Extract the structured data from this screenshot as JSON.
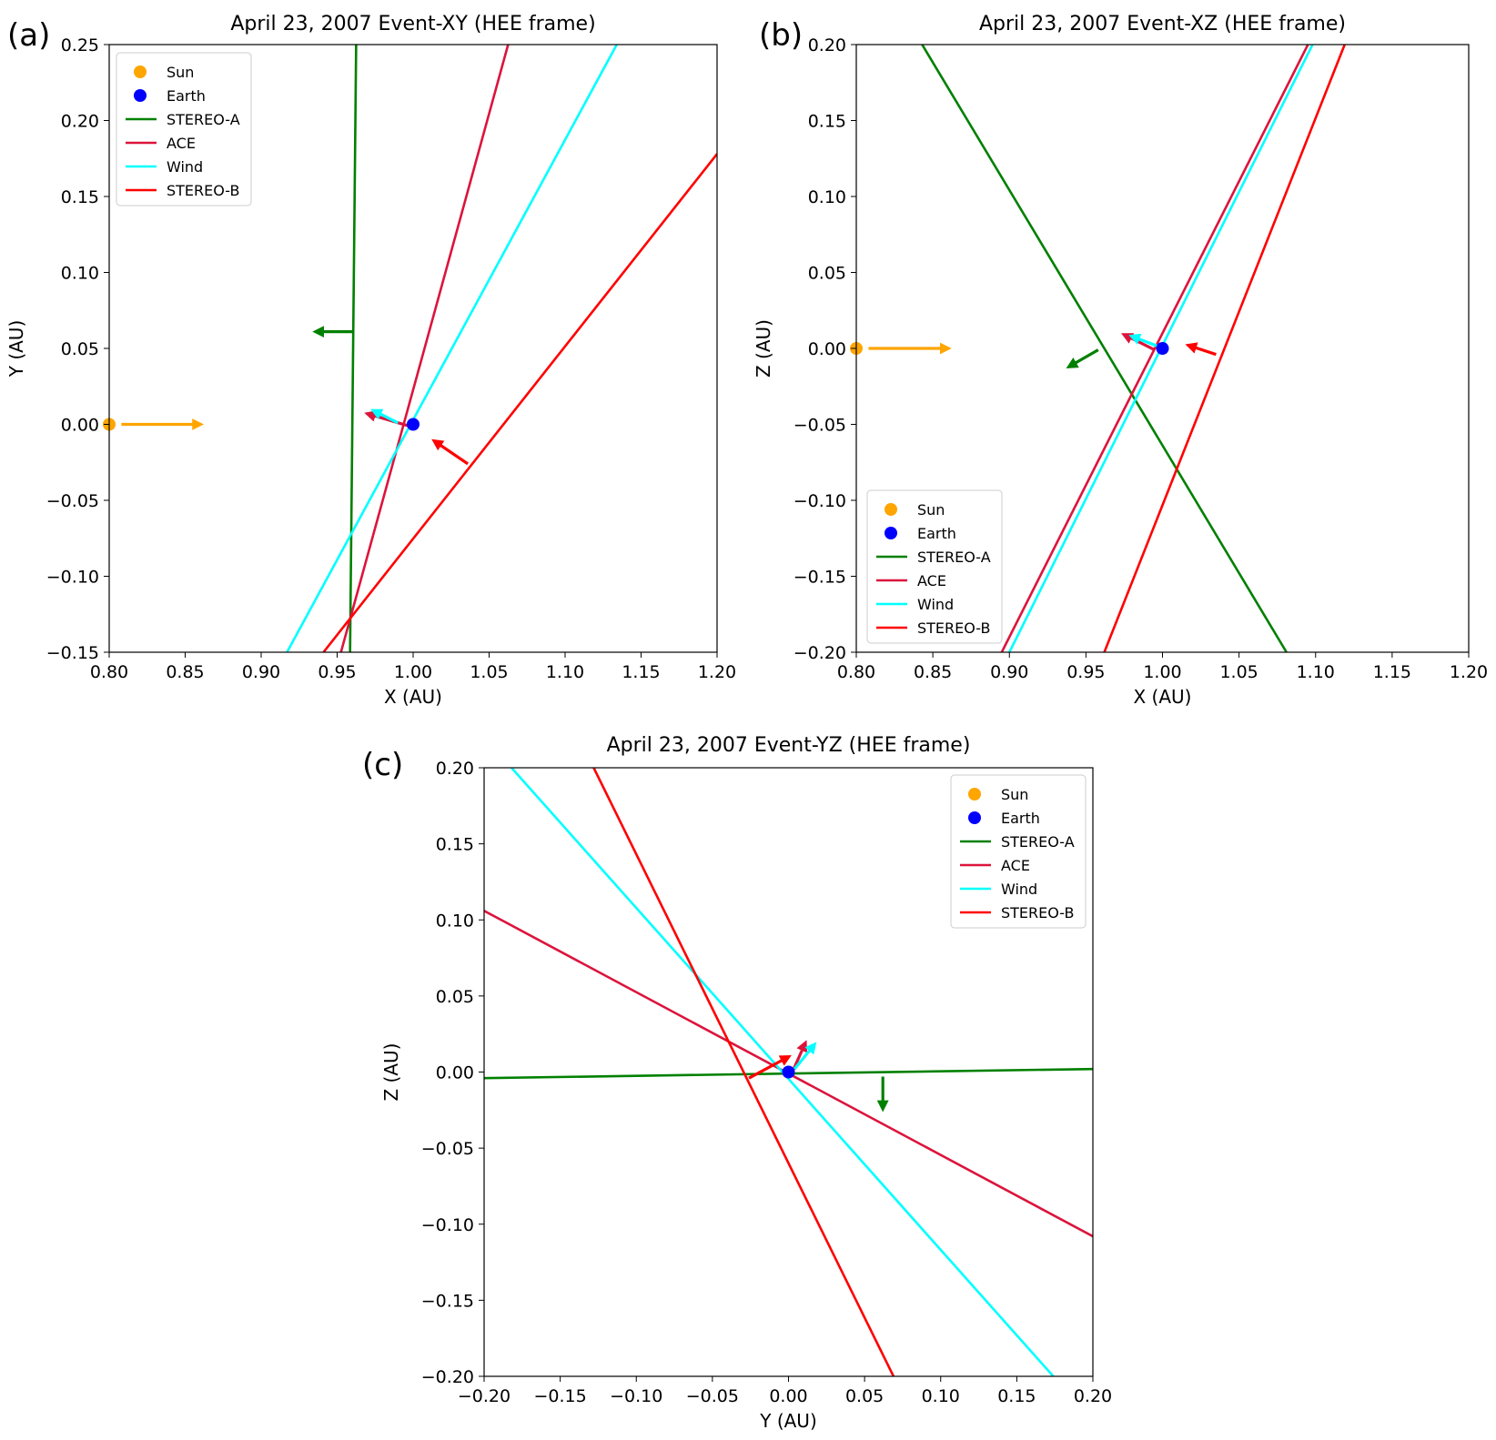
{
  "figure": {
    "panel_tags": [
      "(a)",
      "(b)",
      "(c)"
    ]
  },
  "chart_data": [
    {
      "type": "line",
      "panel": "(a)",
      "title": "April 23, 2007 Event-XY (HEE frame)",
      "xlabel": "X (AU)",
      "ylabel": "Y (AU)",
      "xlim": [
        0.8,
        1.2
      ],
      "ylim": [
        -0.15,
        0.25
      ],
      "xticks": [
        "0.80",
        "0.85",
        "0.90",
        "0.95",
        "1.00",
        "1.05",
        "1.10",
        "1.15",
        "1.20"
      ],
      "xtick_values": [
        0.8,
        0.85,
        0.9,
        0.95,
        1.0,
        1.05,
        1.1,
        1.15,
        1.2
      ],
      "yticks": [
        "−0.15",
        "−0.10",
        "−0.05",
        "0.00",
        "0.05",
        "0.10",
        "0.15",
        "0.20",
        "0.25"
      ],
      "ytick_values": [
        -0.15,
        -0.1,
        -0.05,
        0.0,
        0.05,
        0.1,
        0.15,
        0.2,
        0.25
      ],
      "legend_loc": "upper-left",
      "points": [
        {
          "name": "Sun",
          "x": 0.8,
          "y": 0.0,
          "color": "#ffa500"
        },
        {
          "name": "Earth",
          "x": 1.0,
          "y": 0.0,
          "color": "#0000ff"
        }
      ],
      "series": [
        {
          "name": "STEREO-A",
          "color": "#008000",
          "x": [
            0.9585,
            0.9625
          ],
          "y": [
            -0.15,
            0.25
          ]
        },
        {
          "name": "ACE",
          "color": "#dc143c",
          "x": [
            0.9525,
            1.0625
          ],
          "y": [
            -0.15,
            0.25
          ]
        },
        {
          "name": "Wind",
          "color": "#00ffff",
          "x": [
            0.917,
            1.134
          ],
          "y": [
            -0.15,
            0.25
          ]
        },
        {
          "name": "STEREO-B",
          "color": "#ff0000",
          "x": [
            0.941,
            1.2
          ],
          "y": [
            -0.15,
            0.178
          ]
        }
      ],
      "arrows": [
        {
          "name": "Sun",
          "color": "#ffa500",
          "x0": 0.808,
          "y0": 0.0,
          "x1": 0.86,
          "y1": 0.0
        },
        {
          "name": "STEREO-A",
          "color": "#008000",
          "x0": 0.96,
          "y0": 0.061,
          "x1": 0.936,
          "y1": 0.061
        },
        {
          "name": "ACE",
          "color": "#dc143c",
          "x0": 0.997,
          "y0": -0.001,
          "x1": 0.97,
          "y1": 0.007
        },
        {
          "name": "Wind",
          "color": "#00ffff",
          "x0": 0.99,
          "y0": 0.001,
          "x1": 0.974,
          "y1": 0.009
        },
        {
          "name": "STEREO-B",
          "color": "#ff0000",
          "x0": 1.036,
          "y0": -0.026,
          "x1": 1.014,
          "y1": -0.011
        }
      ],
      "legend": [
        "Sun",
        "Earth",
        "STEREO-A",
        "ACE",
        "Wind",
        "STEREO-B"
      ]
    },
    {
      "type": "line",
      "panel": "(b)",
      "title": "April 23, 2007 Event-XZ (HEE frame)",
      "xlabel": "X (AU)",
      "ylabel": "Z (AU)",
      "xlim": [
        0.8,
        1.2
      ],
      "ylim": [
        -0.2,
        0.2
      ],
      "xticks": [
        "0.80",
        "0.85",
        "0.90",
        "0.95",
        "1.00",
        "1.05",
        "1.10",
        "1.15",
        "1.20"
      ],
      "xtick_values": [
        0.8,
        0.85,
        0.9,
        0.95,
        1.0,
        1.05,
        1.1,
        1.15,
        1.2
      ],
      "yticks": [
        "−0.20",
        "−0.15",
        "−0.10",
        "−0.05",
        "0.00",
        "0.05",
        "0.10",
        "0.15",
        "0.20"
      ],
      "ytick_values": [
        -0.2,
        -0.15,
        -0.1,
        -0.05,
        0.0,
        0.05,
        0.1,
        0.15,
        0.2
      ],
      "legend_loc": "lower-left",
      "points": [
        {
          "name": "Sun",
          "x": 0.8,
          "y": 0.0,
          "color": "#ffa500"
        },
        {
          "name": "Earth",
          "x": 1.0,
          "y": 0.0,
          "color": "#0000ff"
        }
      ],
      "series": [
        {
          "name": "STEREO-A",
          "color": "#008000",
          "x": [
            0.843,
            1.081
          ],
          "y": [
            0.2,
            -0.2
          ]
        },
        {
          "name": "ACE",
          "color": "#dc143c",
          "x": [
            0.895,
            1.095
          ],
          "y": [
            -0.2,
            0.2
          ]
        },
        {
          "name": "Wind",
          "color": "#00ffff",
          "x": [
            0.9,
            1.098
          ],
          "y": [
            -0.2,
            0.2
          ]
        },
        {
          "name": "STEREO-B",
          "color": "#ff0000",
          "x": [
            0.962,
            1.119
          ],
          "y": [
            -0.2,
            0.2
          ]
        }
      ],
      "arrows": [
        {
          "name": "Sun",
          "color": "#ffa500",
          "x0": 0.808,
          "y0": 0.0,
          "x1": 0.86,
          "y1": 0.0
        },
        {
          "name": "STEREO-A",
          "color": "#008000",
          "x0": 0.958,
          "y0": -0.001,
          "x1": 0.939,
          "y1": -0.012
        },
        {
          "name": "ACE",
          "color": "#dc143c",
          "x0": 0.995,
          "y0": -0.001,
          "x1": 0.975,
          "y1": 0.009
        },
        {
          "name": "Wind",
          "color": "#00ffff",
          "x0": 0.998,
          "y0": 0.001,
          "x1": 0.98,
          "y1": 0.008
        },
        {
          "name": "STEREO-B",
          "color": "#ff0000",
          "x0": 1.035,
          "y0": -0.004,
          "x1": 1.017,
          "y1": 0.002
        }
      ],
      "legend": [
        "Sun",
        "Earth",
        "STEREO-A",
        "ACE",
        "Wind",
        "STEREO-B"
      ]
    },
    {
      "type": "line",
      "panel": "(c)",
      "title": "April 23, 2007 Event-YZ (HEE frame)",
      "xlabel": "Y (AU)",
      "ylabel": "Z (AU)",
      "xlim": [
        -0.2,
        0.2
      ],
      "ylim": [
        -0.2,
        0.2
      ],
      "xticks": [
        "−0.20",
        "−0.15",
        "−0.10",
        "−0.05",
        "0.00",
        "0.05",
        "0.10",
        "0.15",
        "0.20"
      ],
      "xtick_values": [
        -0.2,
        -0.15,
        -0.1,
        -0.05,
        0.0,
        0.05,
        0.1,
        0.15,
        0.2
      ],
      "yticks": [
        "−0.20",
        "−0.15",
        "−0.10",
        "−0.05",
        "0.00",
        "0.05",
        "0.10",
        "0.15",
        "0.20"
      ],
      "ytick_values": [
        -0.2,
        -0.15,
        -0.1,
        -0.05,
        0.0,
        0.05,
        0.1,
        0.15,
        0.2
      ],
      "legend_loc": "upper-right",
      "points": [
        {
          "name": "Earth",
          "x": 0.0,
          "y": 0.0,
          "color": "#0000ff"
        }
      ],
      "series": [
        {
          "name": "STEREO-A",
          "color": "#008000",
          "x": [
            -0.2,
            0.2
          ],
          "y": [
            -0.004,
            0.002
          ]
        },
        {
          "name": "ACE",
          "color": "#dc143c",
          "x": [
            -0.2,
            0.2
          ],
          "y": [
            0.106,
            -0.108
          ]
        },
        {
          "name": "Wind",
          "color": "#00ffff",
          "x": [
            -0.182,
            0.174
          ],
          "y": [
            0.2,
            -0.2
          ]
        },
        {
          "name": "STEREO-B",
          "color": "#ff0000",
          "x": [
            -0.128,
            0.069
          ],
          "y": [
            0.2,
            -0.2
          ]
        }
      ],
      "arrows": [
        {
          "name": "STEREO-A",
          "color": "#008000",
          "x0": 0.062,
          "y0": -0.003,
          "x1": 0.062,
          "y1": -0.024
        },
        {
          "name": "ACE",
          "color": "#dc143c",
          "x0": 0.003,
          "y0": 0.001,
          "x1": 0.011,
          "y1": 0.019
        },
        {
          "name": "Wind",
          "color": "#00ffff",
          "x0": 0.004,
          "y0": 0.002,
          "x1": 0.017,
          "y1": 0.018
        },
        {
          "name": "STEREO-B",
          "color": "#ff0000",
          "x0": -0.026,
          "y0": -0.004,
          "x1": 0.0,
          "y1": 0.01
        }
      ],
      "legend": [
        "Sun",
        "Earth",
        "STEREO-A",
        "ACE",
        "Wind",
        "STEREO-B"
      ]
    }
  ]
}
